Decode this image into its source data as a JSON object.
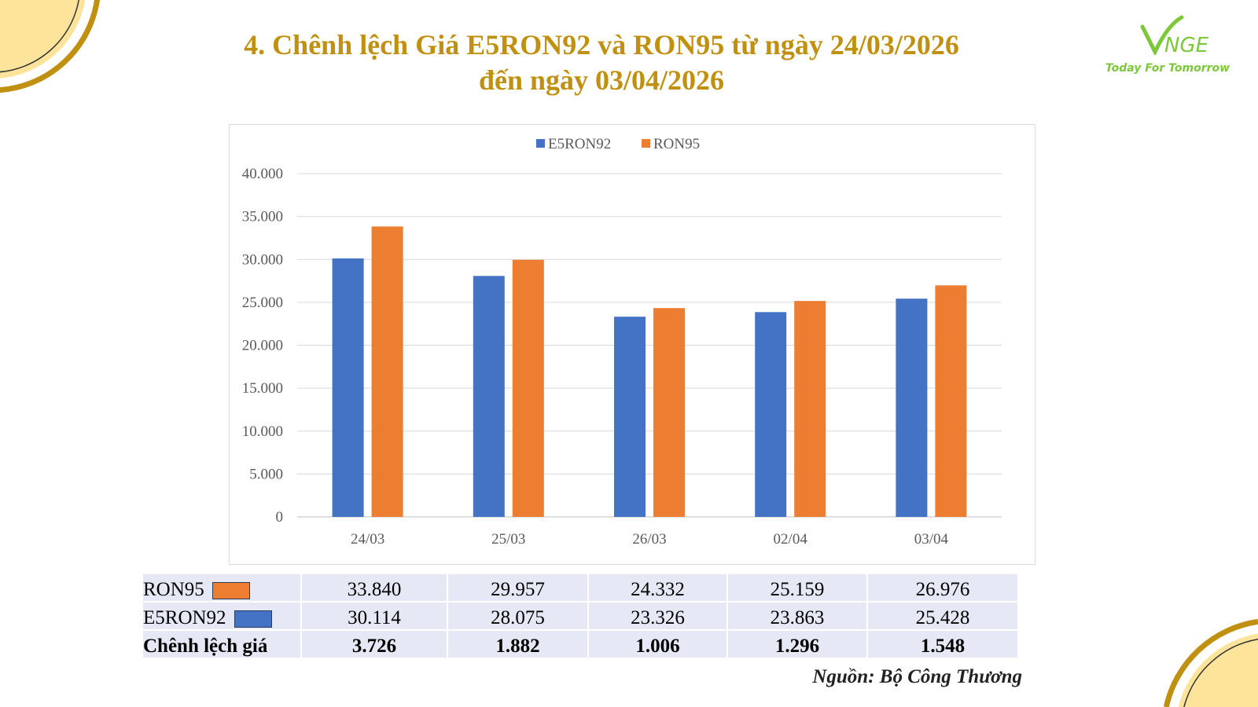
{
  "title_line1": "4. Chênh lệch Giá E5RON92 và RON95 từ ngày 24/03/2026",
  "title_line2": "đến ngày 03/04/2026",
  "logo": {
    "brand": "VNGE",
    "tagline": "Today For Tomorrow"
  },
  "colors": {
    "E5RON92": "#4472C4",
    "RON95": "#ED7D31",
    "title": "#C09010"
  },
  "chart_data": {
    "type": "bar",
    "categories": [
      "24/03",
      "25/03",
      "26/03",
      "02/04",
      "03/04"
    ],
    "series": [
      {
        "name": "E5RON92",
        "values": [
          30114,
          28075,
          23326,
          23863,
          25428
        ]
      },
      {
        "name": "RON95",
        "values": [
          33840,
          29957,
          24332,
          25159,
          26976
        ]
      }
    ],
    "ylim": [
      0,
      40000
    ],
    "yticks": [
      "0",
      "5.000",
      "10.000",
      "15.000",
      "20.000",
      "25.000",
      "30.000",
      "35.000",
      "40.000"
    ],
    "legend": "top-center",
    "grid": true
  },
  "table": {
    "rows": [
      {
        "label": "RON95",
        "values": [
          "33.840",
          "29.957",
          "24.332",
          "25.159",
          "26.976"
        ]
      },
      {
        "label": "E5RON92",
        "values": [
          "30.114",
          "28.075",
          "23.326",
          "23.863",
          "25.428"
        ]
      },
      {
        "label": "Chênh lệch giá",
        "values": [
          "3.726",
          "1.882",
          "1.006",
          "1.296",
          "1.548"
        ]
      }
    ]
  },
  "source": "Nguồn: Bộ Công Thương"
}
